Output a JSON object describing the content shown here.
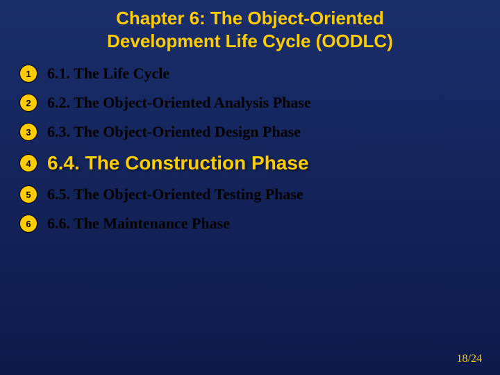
{
  "title": {
    "line1": "Chapter 6: The Object-Oriented",
    "line2": "Development Life Cycle (OODLC)",
    "color": "#ffcc00",
    "fontsize": 26
  },
  "items": [
    {
      "bullet": "1",
      "text": "6.1. The Life Cycle",
      "highlighted": false
    },
    {
      "bullet": "2",
      "text": "6.2. The Object-Oriented Analysis Phase",
      "highlighted": false
    },
    {
      "bullet": "3",
      "text": "6.3. The Object-Oriented Design Phase",
      "highlighted": false
    },
    {
      "bullet": "4",
      "text": "6.4. The Construction Phase",
      "highlighted": true
    },
    {
      "bullet": "5",
      "text": "6.5. The Object-Oriented Testing Phase",
      "highlighted": false
    },
    {
      "bullet": "6",
      "text": "6.6. The Maintenance Phase",
      "highlighted": false
    }
  ],
  "item_style": {
    "normal_color": "#000000",
    "normal_fontsize": 22,
    "highlight_color": "#ffcc00",
    "highlight_fontsize": 28,
    "bullet_bg": "#ffcc00",
    "bullet_border": "#000000",
    "bullet_text_color": "#000000",
    "bullet_fontsize": 13
  },
  "page_number": {
    "text": "18/24",
    "color": "#ffcc00",
    "fontsize": 16
  }
}
